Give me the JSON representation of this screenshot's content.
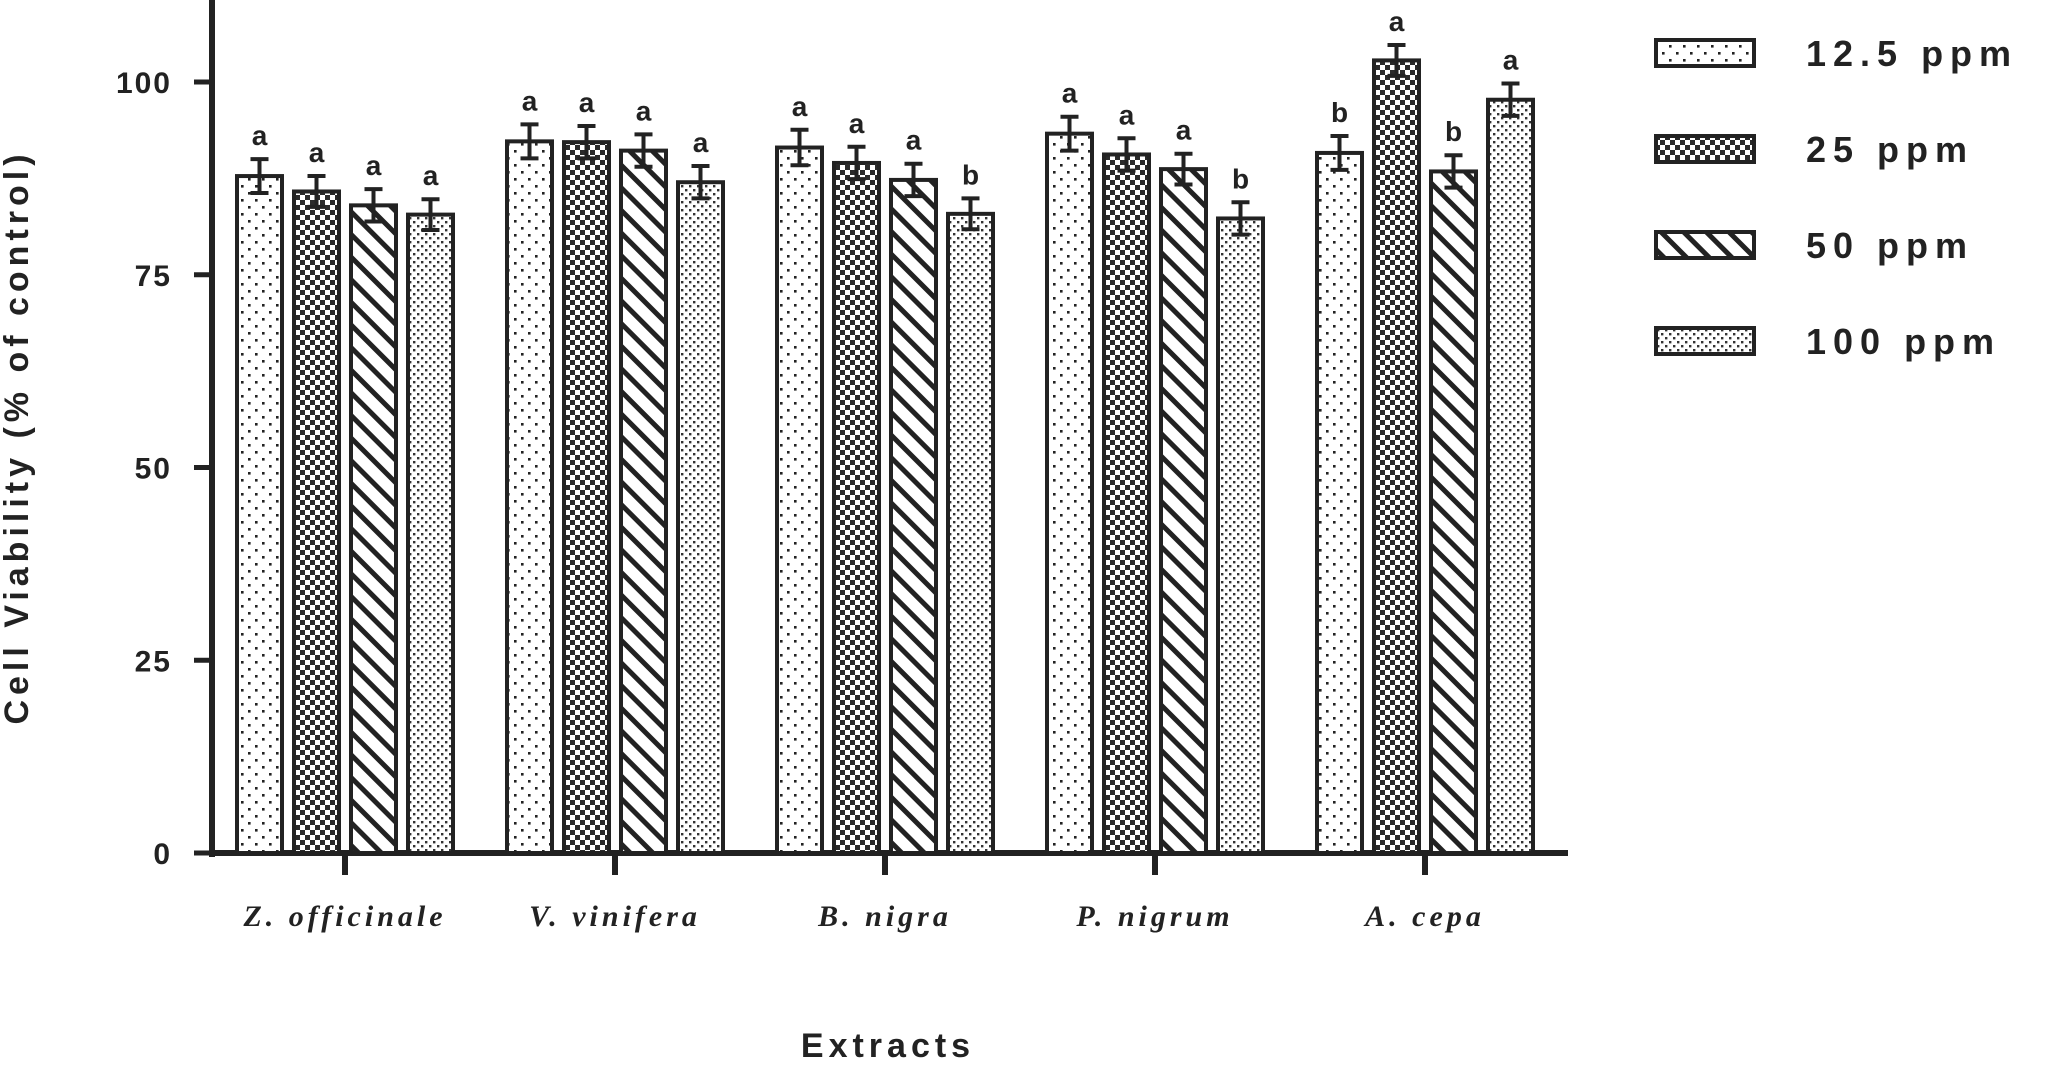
{
  "chart_data": {
    "type": "bar",
    "title": "",
    "xlabel": "Extracts",
    "ylabel": "Cell Viability (% of control)",
    "ylim": [
      0,
      110
    ],
    "yticks": [
      0,
      25,
      50,
      75,
      100
    ],
    "grid": false,
    "legend_position": "right",
    "categories": [
      "Z. officinale",
      "V. vinifera",
      "B. nigra",
      "P. nigrum",
      "A. cepa"
    ],
    "series": [
      {
        "name": "12.5 ppm",
        "pattern": "dots",
        "values": [
          87.8,
          92.3,
          91.5,
          93.3,
          90.8
        ],
        "errors": [
          2.2,
          2.2,
          2.3,
          2.2,
          2.2
        ],
        "significance": [
          "a",
          "a",
          "a",
          "a",
          "b"
        ]
      },
      {
        "name": "25 ppm",
        "pattern": "checker",
        "values": [
          85.8,
          92.2,
          89.5,
          90.6,
          102.8
        ],
        "errors": [
          2.0,
          2.1,
          2.1,
          2.1,
          2.0
        ],
        "significance": [
          "a",
          "a",
          "a",
          "a",
          "a"
        ]
      },
      {
        "name": "50 ppm",
        "pattern": "diagonal",
        "values": [
          84.0,
          91.1,
          87.3,
          88.7,
          88.4
        ],
        "errors": [
          2.1,
          2.1,
          2.1,
          2.0,
          2.1
        ],
        "significance": [
          "a",
          "a",
          "a",
          "a",
          "b"
        ]
      },
      {
        "name": "100 ppm",
        "pattern": "fine-dots",
        "values": [
          82.8,
          87.0,
          82.9,
          82.3,
          97.7
        ],
        "errors": [
          2.0,
          2.1,
          2.0,
          2.1,
          2.1
        ],
        "significance": [
          "a",
          "a",
          "b",
          "b",
          "a"
        ]
      }
    ]
  },
  "colors": {
    "ink": "#222222",
    "background": "#ffffff"
  }
}
